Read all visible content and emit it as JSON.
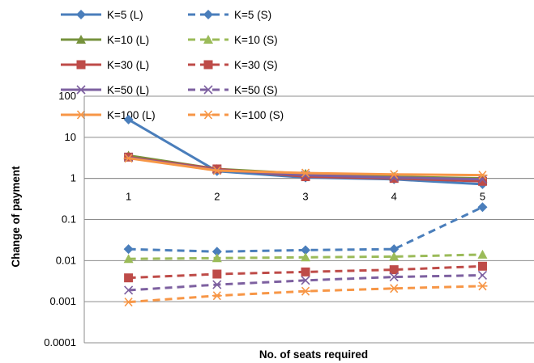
{
  "chart_data": {
    "type": "line",
    "title": "",
    "xlabel": "No. of seats required",
    "ylabel": "Change of payment",
    "x": [
      1,
      2,
      3,
      4,
      5
    ],
    "x_tick_labels": [
      "1",
      "2",
      "3",
      "4",
      "5"
    ],
    "yscale": "log",
    "ylim": [
      0.0001,
      100
    ],
    "y_tick_labels": [
      "0.0001",
      "0.001",
      "0.01",
      "0.1",
      "1",
      "10",
      "100"
    ],
    "grid": "horizontal",
    "legend_position": "top",
    "series": [
      {
        "name": "K=5 (L)",
        "color": "#4a7ebb",
        "dash": "solid",
        "marker": "diamond",
        "values": [
          27,
          1.5,
          1.05,
          0.95,
          0.72
        ]
      },
      {
        "name": "K=5 (S)",
        "color": "#4a7ebb",
        "dash": "dashed",
        "marker": "diamond",
        "values": [
          0.019,
          0.0165,
          0.018,
          0.019,
          0.2
        ]
      },
      {
        "name": "K=10 (L)",
        "color": "#76923c",
        "dash": "solid",
        "marker": "triangle",
        "values": [
          3.6,
          1.7,
          1.3,
          1.1,
          1.0
        ]
      },
      {
        "name": "K=10 (S)",
        "color": "#9bbb59",
        "dash": "dashed",
        "marker": "triangle",
        "values": [
          0.011,
          0.0115,
          0.012,
          0.0125,
          0.014
        ]
      },
      {
        "name": "K=30 (L)",
        "color": "#be4b48",
        "dash": "solid",
        "marker": "square",
        "values": [
          3.3,
          1.7,
          1.1,
          1.0,
          0.85
        ]
      },
      {
        "name": "K=30 (S)",
        "color": "#be4b48",
        "dash": "dashed",
        "marker": "square",
        "values": [
          0.0038,
          0.0047,
          0.0053,
          0.006,
          0.0073
        ]
      },
      {
        "name": "K=50 (L)",
        "color": "#7d60a0",
        "dash": "solid",
        "marker": "x",
        "values": [
          3.2,
          1.6,
          1.2,
          1.05,
          0.95
        ]
      },
      {
        "name": "K=50 (S)",
        "color": "#7d60a0",
        "dash": "dashed",
        "marker": "x",
        "values": [
          0.0019,
          0.0026,
          0.0033,
          0.004,
          0.0044
        ]
      },
      {
        "name": "K=100 (L)",
        "color": "#f79646",
        "dash": "solid",
        "marker": "star",
        "values": [
          3.1,
          1.55,
          1.35,
          1.25,
          1.2
        ]
      },
      {
        "name": "K=100 (S)",
        "color": "#f79646",
        "dash": "dashed",
        "marker": "star",
        "values": [
          0.00098,
          0.0014,
          0.0018,
          0.0021,
          0.0024
        ]
      }
    ]
  }
}
